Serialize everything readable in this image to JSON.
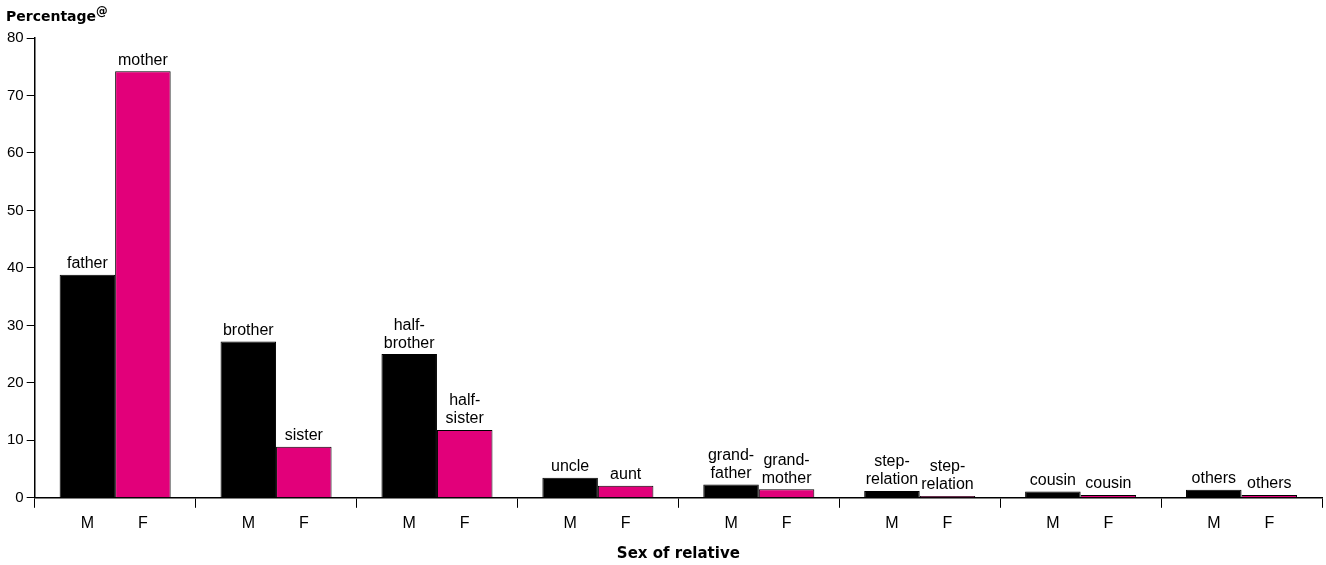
{
  "chart_data": {
    "type": "bar",
    "ylabel": "Percentage$^{@}$",
    "xlabel": "Sex of relative",
    "categories": [
      null,
      null,
      null,
      null,
      null,
      null,
      null,
      null
    ],
    "series": [
      {
        "name": "M",
        "color": "#000000",
        "values": [
          38.8,
          27.2,
          25.0,
          3.5,
          2.3,
          1.2,
          1.1,
          1.4
        ],
        "value_labels": [
          "father",
          "brother",
          "half-\nbrother",
          "uncle",
          "grand-\nfather",
          "step-\nrelation",
          "cousin",
          "others"
        ]
      },
      {
        "name": "F",
        "color": "#e2007a",
        "values": [
          74.2,
          8.9,
          11.8,
          2.1,
          1.5,
          0.3,
          0.5,
          0.5
        ],
        "value_labels": [
          "mother",
          "sister",
          "half-\nsister",
          "aunt",
          "grand-\nmother",
          "step-\nrelation",
          "cousin",
          "others"
        ]
      }
    ],
    "ylim": [
      0,
      80
    ],
    "yticks": [
      0,
      10,
      20,
      30,
      40,
      50,
      60,
      70,
      80
    ],
    "grid": false,
    "legend": false
  }
}
